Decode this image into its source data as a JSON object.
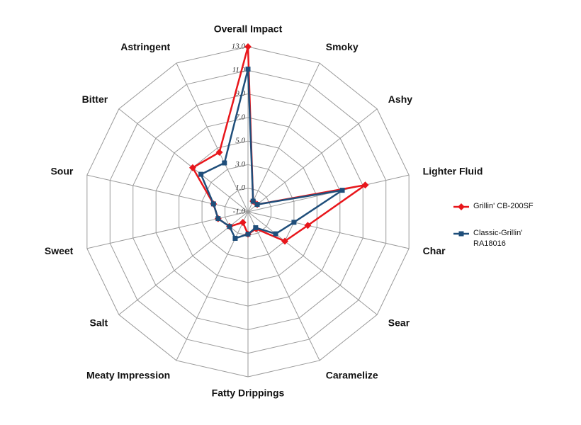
{
  "chart_data": {
    "type": "radar",
    "categories": [
      "Overall Impact",
      "Smoky",
      "Ashy",
      "Lighter Fluid",
      "Char",
      "Sear",
      "Caramelize",
      "Fatty Drippings",
      "Meaty Impression",
      "Salt",
      "Sweet",
      "Sour",
      "Bitter",
      "Astringent"
    ],
    "series": [
      {
        "name": "Grillin' CB-200SF",
        "color": "#e8161b",
        "values": [
          13.0,
          0.0,
          0.0,
          9.2,
          4.2,
          3.0,
          0.6,
          0.9,
          0.0,
          1.0,
          1.6,
          2.0,
          5.0,
          4.6
        ]
      },
      {
        "name": "Classic-Grillin' RA18016",
        "color": "#1f4e7a",
        "values": [
          11.1,
          0.0,
          0.0,
          7.2,
          3.0,
          2.0,
          0.5,
          0.9,
          1.5,
          1.0,
          1.6,
          2.0,
          4.1,
          3.6
        ]
      }
    ],
    "ylim": [
      -1.0,
      13.0
    ],
    "yticks": [
      {
        "value": -1,
        "label": "-1.0"
      },
      {
        "value": 1,
        "label": "1.0"
      },
      {
        "value": 3,
        "label": "3.0"
      },
      {
        "value": 5,
        "label": "5.0"
      },
      {
        "value": 7,
        "label": "7.0"
      },
      {
        "value": 9,
        "label": "9.0"
      },
      {
        "value": 11,
        "label": "11.0"
      },
      {
        "value": 13,
        "label": "13.0"
      }
    ],
    "grid": true,
    "legend": "right"
  }
}
